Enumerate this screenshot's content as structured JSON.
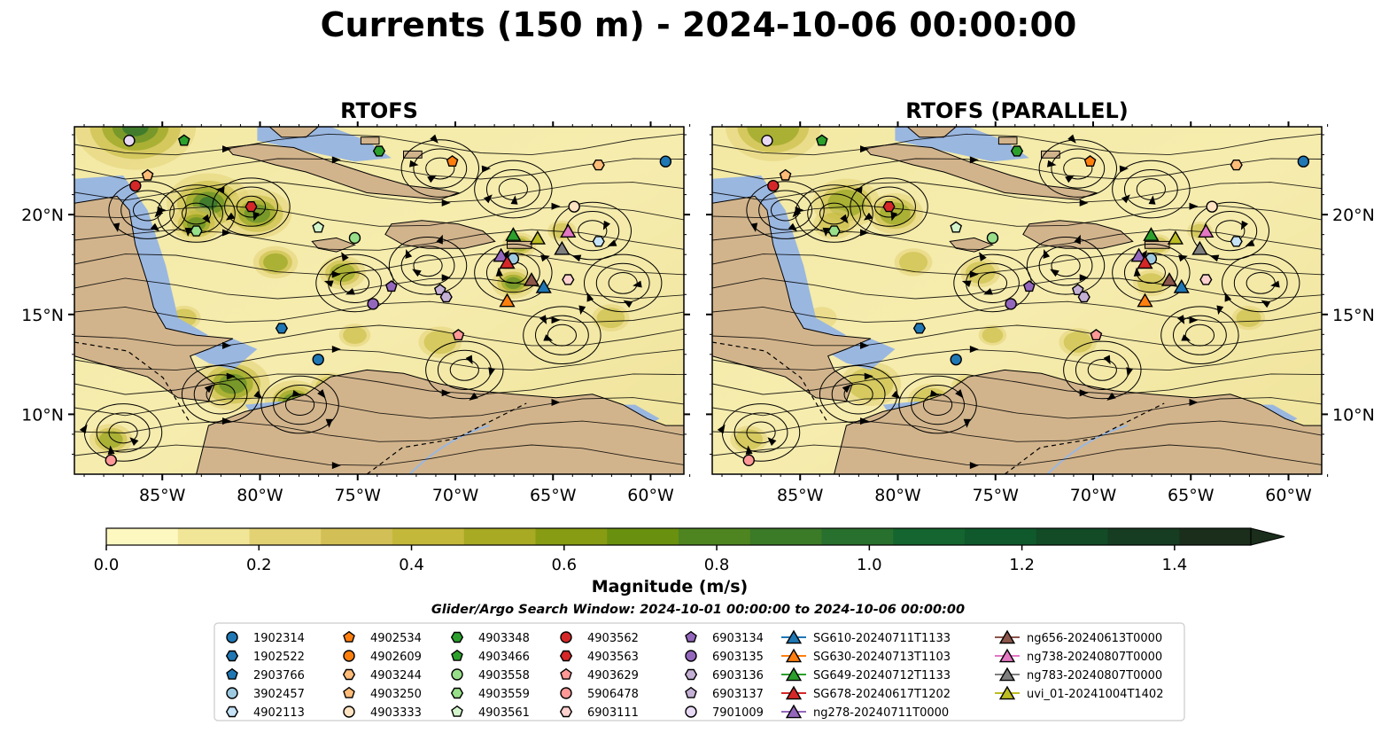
{
  "title": "Currents (150 m) - 2024-10-06 00:00:00",
  "chart_data": [
    {
      "type": "heatmap",
      "title": "RTOFS",
      "x_ticks": [
        "85°W",
        "80°W",
        "75°W",
        "70°W",
        "65°W",
        "60°W"
      ],
      "y_ticks": [
        "20°N",
        "15°N",
        "10°N"
      ],
      "xlim": [
        -89.5,
        -58.3
      ],
      "ylim": [
        7.0,
        24.4
      ],
      "grid": false,
      "overlay": "streamlines"
    },
    {
      "type": "heatmap",
      "title": "RTOFS (PARALLEL)",
      "x_ticks": [
        "85°W",
        "80°W",
        "75°W",
        "70°W",
        "65°W",
        "60°W"
      ],
      "y_ticks": [
        "20°N",
        "15°N",
        "10°N"
      ],
      "xlim": [
        -89.5,
        -58.3
      ],
      "ylim": [
        7.0,
        24.4
      ],
      "grid": false,
      "overlay": "streamlines"
    }
  ],
  "colorbar": {
    "label": "Magnitude (m/s)",
    "ticks": [
      "0.0",
      "0.2",
      "0.4",
      "0.6",
      "0.8",
      "1.0",
      "1.2",
      "1.4"
    ],
    "range": [
      0,
      1.5
    ],
    "extend": "max",
    "colors": [
      "#fdf8c0",
      "#f1e597",
      "#e2d274",
      "#d2bf55",
      "#c3b83a",
      "#a7aa22",
      "#879c12",
      "#6a900f",
      "#4e8520",
      "#3b7a27",
      "#28702d",
      "#14652f",
      "#0f592c",
      "#124b26",
      "#163c21",
      "#1a2e1b"
    ]
  },
  "search_window": "Glider/Argo Search Window: 2024-10-01 00:00:00 to 2024-10-06 00:00:00",
  "legend": {
    "columns": [
      [
        {
          "label": "1902314",
          "marker": "circle",
          "color": "#1f77b4"
        },
        {
          "label": "1902522",
          "marker": "hexagon",
          "color": "#1f77b4"
        },
        {
          "label": "2903766",
          "marker": "pentagon",
          "color": "#1f77b4"
        },
        {
          "label": "3902457",
          "marker": "circle",
          "color": "#9ecae1"
        },
        {
          "label": "4902113",
          "marker": "hexagon",
          "color": "#c6e3f7"
        }
      ],
      [
        {
          "label": "4902534",
          "marker": "pentagon",
          "color": "#ff7f0e"
        },
        {
          "label": "4902609",
          "marker": "circle",
          "color": "#ff7f0e"
        },
        {
          "label": "4903244",
          "marker": "hexagon",
          "color": "#ffbb78"
        },
        {
          "label": "4903250",
          "marker": "pentagon",
          "color": "#ffbb78"
        },
        {
          "label": "4903333",
          "marker": "circle",
          "color": "#ffe3c2"
        }
      ],
      [
        {
          "label": "4903348",
          "marker": "hexagon",
          "color": "#2ca02c"
        },
        {
          "label": "4903466",
          "marker": "pentagon",
          "color": "#2ca02c"
        },
        {
          "label": "4903558",
          "marker": "circle",
          "color": "#98df8a"
        },
        {
          "label": "4903559",
          "marker": "hexagon",
          "color": "#98df8a"
        },
        {
          "label": "4903561",
          "marker": "pentagon",
          "color": "#d4f5cc"
        }
      ],
      [
        {
          "label": "4903562",
          "marker": "circle",
          "color": "#d62728"
        },
        {
          "label": "4903563",
          "marker": "hexagon",
          "color": "#d62728"
        },
        {
          "label": "4903629",
          "marker": "pentagon",
          "color": "#ff9896"
        },
        {
          "label": "5906478",
          "marker": "circle",
          "color": "#ff9896"
        },
        {
          "label": "6903111",
          "marker": "hexagon",
          "color": "#ffd1cf"
        }
      ],
      [
        {
          "label": "6903134",
          "marker": "pentagon",
          "color": "#9467bd"
        },
        {
          "label": "6903135",
          "marker": "circle",
          "color": "#9467bd"
        },
        {
          "label": "6903136",
          "marker": "hexagon",
          "color": "#c5b0d5"
        },
        {
          "label": "6903137",
          "marker": "pentagon",
          "color": "#c5b0d5"
        },
        {
          "label": "7901009",
          "marker": "circle",
          "color": "#e8d9f5"
        }
      ],
      [
        {
          "label": "SG610-20240711T1133",
          "marker": "triangle",
          "color": "#1f77b4"
        },
        {
          "label": "SG630-20240713T1103",
          "marker": "triangle",
          "color": "#ff7f0e"
        },
        {
          "label": "SG649-20240712T1133",
          "marker": "triangle",
          "color": "#2ca02c"
        },
        {
          "label": "SG678-20240617T1202",
          "marker": "triangle",
          "color": "#d62728"
        },
        {
          "label": "ng278-20240711T0000",
          "marker": "triangle",
          "color": "#9467bd"
        }
      ],
      [
        {
          "label": "ng656-20240613T0000",
          "marker": "triangle",
          "color": "#8c564b"
        },
        {
          "label": "ng738-20240807T0000",
          "marker": "triangle",
          "color": "#e377c2"
        },
        {
          "label": "ng783-20240807T0000",
          "marker": "triangle",
          "color": "#7f7f7f"
        },
        {
          "label": "uvi_01-20241004T1402",
          "marker": "triangle",
          "color": "#bcbd22"
        }
      ]
    ]
  },
  "map_colors": {
    "land": "#d2b48c",
    "ocean_shelf": "#9ab7e0",
    "river": "#9ab7e0"
  }
}
